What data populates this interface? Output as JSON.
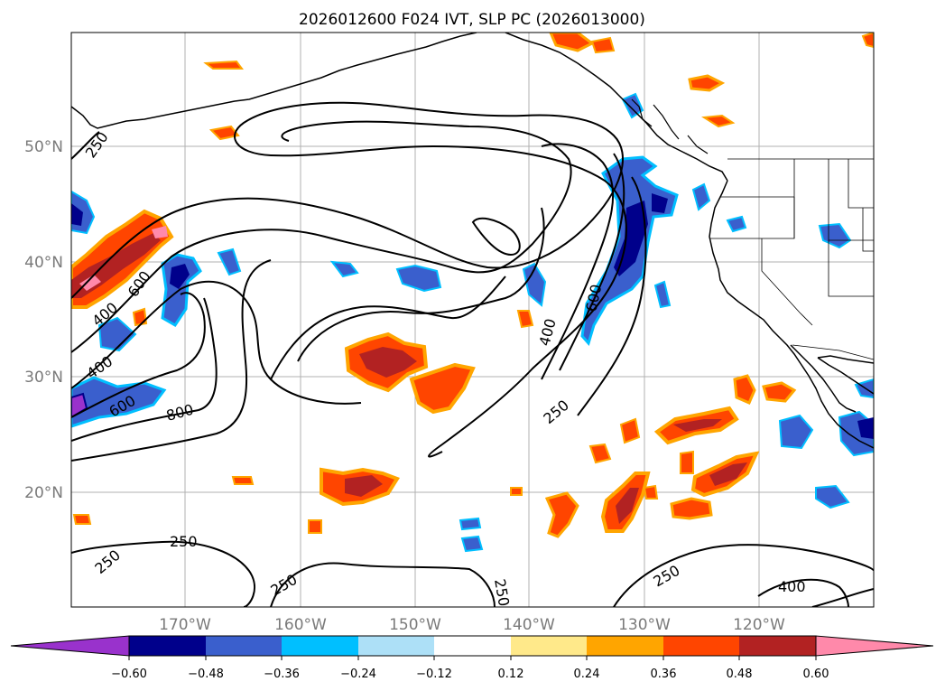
{
  "title": "2026012600 F024 IVT, SLP PC (2026013000)",
  "lat_labels": [
    "50°N",
    "40°N",
    "30°N",
    "20°N"
  ],
  "lon_labels": [
    "170°W",
    "160°W",
    "150°W",
    "140°W",
    "130°W",
    "120°W"
  ],
  "contour_labels": [
    "250",
    "400",
    "600",
    "400",
    "600",
    "800",
    "600",
    "400",
    "250",
    "250",
    "250",
    "250",
    "250",
    "250",
    "400"
  ],
  "colors": {
    "land_coast": "#000000",
    "grid": "#b0b0b0",
    "contour": "#000000"
  },
  "colorbar": {
    "ticks": [
      "−0.60",
      "−0.48",
      "−0.36",
      "−0.24",
      "−0.12",
      "0.12",
      "0.24",
      "0.36",
      "0.48",
      "0.60"
    ],
    "colors": [
      "#9932CC",
      "#00008B",
      "#3A5FCD",
      "#00BFFF",
      "#ADE0F7",
      "#FFFFFF",
      "#FFE98A",
      "#FFA500",
      "#FF4500",
      "#B22222",
      "#FF89AA"
    ]
  }
}
